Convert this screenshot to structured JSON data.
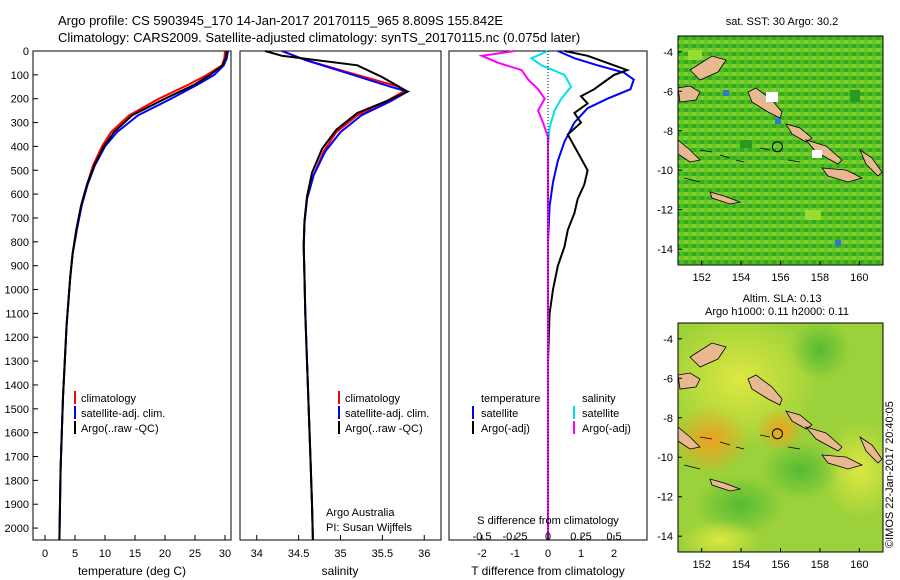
{
  "header": {
    "line1": "Argo profile: CS 5903945_170 14-Jan-2017 20170115_965 8.809S 155.842E",
    "line2": "Climatology: CARS2009. Satellite-adjusted climatology: synTS_20170115.nc (0.075d later)"
  },
  "colors": {
    "climatology": "#ff0000",
    "satellite": "#0000ff",
    "argo": "#000000",
    "sal_satellite": "#00e0ee",
    "sal_argo": "#ff00ff",
    "land": "#e8b890",
    "ocean": "#44bb22"
  },
  "chart_data": [
    {
      "id": "temperature",
      "type": "line",
      "xlabel": "temperature (deg C)",
      "ylabel": "",
      "xlim": [
        -2,
        31
      ],
      "ylim": [
        2050,
        0
      ],
      "xticks": [
        "0",
        "5",
        "10",
        "15",
        "20",
        "25",
        "30"
      ],
      "xtick_values": [
        0,
        5,
        10,
        15,
        20,
        25,
        30
      ],
      "yticks": [
        "0",
        "100",
        "200",
        "300",
        "400",
        "500",
        "600",
        "700",
        "800",
        "900",
        "1000",
        "1100",
        "1200",
        "1300",
        "1400",
        "1500",
        "1600",
        "1700",
        "1800",
        "1900",
        "2000"
      ],
      "ytick_values": [
        0,
        100,
        200,
        300,
        400,
        500,
        600,
        700,
        800,
        900,
        1000,
        1100,
        1200,
        1300,
        1400,
        1500,
        1600,
        1700,
        1800,
        1900,
        2000
      ],
      "legend": [
        "climatology",
        "satellite-adj. clim.",
        "Argo(..raw -QC)"
      ],
      "series": [
        {
          "name": "climatology",
          "color": "#ff0000",
          "points": [
            [
              30,
              0
            ],
            [
              29.9,
              30
            ],
            [
              29.5,
              60
            ],
            [
              27,
              100
            ],
            [
              24,
              140
            ],
            [
              19,
              200
            ],
            [
              14,
              270
            ],
            [
              11,
              340
            ],
            [
              9.5,
              400
            ],
            [
              8,
              480
            ],
            [
              7,
              560
            ],
            [
              6,
              650
            ],
            [
              5.3,
              750
            ],
            [
              4.6,
              850
            ],
            [
              4.2,
              950
            ],
            [
              3.9,
              1050
            ],
            [
              3.6,
              1150
            ],
            [
              3.4,
              1250
            ],
            [
              3.2,
              1350
            ],
            [
              3,
              1450
            ],
            [
              2.8,
              1600
            ],
            [
              2.6,
              1750
            ],
            [
              2.5,
              1900
            ],
            [
              2.4,
              2050
            ]
          ]
        },
        {
          "name": "satellite-adj. clim.",
          "color": "#0000ff",
          "points": [
            [
              30.5,
              0
            ],
            [
              30.3,
              30
            ],
            [
              29.8,
              60
            ],
            [
              28.2,
              100
            ],
            [
              25.5,
              140
            ],
            [
              21,
              200
            ],
            [
              15.5,
              270
            ],
            [
              12,
              340
            ],
            [
              10,
              400
            ],
            [
              8.3,
              480
            ],
            [
              7.1,
              560
            ],
            [
              6.1,
              650
            ],
            [
              5.3,
              750
            ],
            [
              4.6,
              850
            ],
            [
              4.2,
              950
            ],
            [
              3.9,
              1050
            ],
            [
              3.6,
              1150
            ],
            [
              3.4,
              1250
            ],
            [
              3.2,
              1350
            ],
            [
              3,
              1450
            ],
            [
              2.8,
              1600
            ],
            [
              2.6,
              1750
            ],
            [
              2.5,
              1900
            ],
            [
              2.4,
              2050
            ]
          ]
        },
        {
          "name": "Argo(..raw -QC)",
          "color": "#000000",
          "points": [
            [
              30.3,
              0
            ],
            [
              30.1,
              30
            ],
            [
              29.6,
              60
            ],
            [
              27.5,
              100
            ],
            [
              25,
              140
            ],
            [
              20,
              200
            ],
            [
              14.5,
              270
            ],
            [
              11.5,
              340
            ],
            [
              9.8,
              400
            ],
            [
              8.2,
              480
            ],
            [
              7,
              560
            ],
            [
              6,
              650
            ],
            [
              5.2,
              750
            ],
            [
              4.6,
              850
            ],
            [
              4.2,
              950
            ],
            [
              3.9,
              1050
            ],
            [
              3.6,
              1150
            ],
            [
              3.4,
              1250
            ],
            [
              3.2,
              1350
            ],
            [
              3,
              1450
            ],
            [
              2.8,
              1600
            ],
            [
              2.6,
              1750
            ],
            [
              2.5,
              1900
            ],
            [
              2.4,
              2050
            ]
          ]
        }
      ]
    },
    {
      "id": "salinity",
      "type": "line",
      "xlabel": "salinity",
      "xlim": [
        33.8,
        36.2
      ],
      "ylim": [
        2050,
        0
      ],
      "xticks": [
        "34",
        "34.5",
        "35",
        "35.5",
        "36"
      ],
      "xtick_values": [
        34,
        34.5,
        35,
        35.5,
        36
      ],
      "legend": [
        "climatology",
        "satellite-adj. clim.",
        "Argo(..raw -QC)"
      ],
      "credit": [
        "Argo Australia",
        "PI: Susan Wijffels"
      ],
      "series": [
        {
          "name": "climatology",
          "color": "#ff0000",
          "points": [
            [
              34.3,
              0
            ],
            [
              34.6,
              40
            ],
            [
              35.2,
              100
            ],
            [
              35.7,
              150
            ],
            [
              35.75,
              170
            ],
            [
              35.55,
              210
            ],
            [
              35.2,
              270
            ],
            [
              34.95,
              340
            ],
            [
              34.8,
              420
            ],
            [
              34.68,
              520
            ],
            [
              34.6,
              620
            ],
            [
              34.57,
              720
            ],
            [
              34.56,
              820
            ],
            [
              34.57,
              950
            ],
            [
              34.58,
              1100
            ],
            [
              34.6,
              1300
            ],
            [
              34.62,
              1500
            ],
            [
              34.64,
              1700
            ],
            [
              34.66,
              1900
            ],
            [
              34.67,
              2050
            ]
          ]
        },
        {
          "name": "satellite-adj. clim.",
          "color": "#0000ff",
          "points": [
            [
              34.3,
              0
            ],
            [
              34.6,
              40
            ],
            [
              35.15,
              100
            ],
            [
              35.6,
              150
            ],
            [
              35.8,
              170
            ],
            [
              35.6,
              210
            ],
            [
              35.25,
              270
            ],
            [
              35,
              340
            ],
            [
              34.82,
              420
            ],
            [
              34.68,
              520
            ],
            [
              34.6,
              620
            ],
            [
              34.57,
              720
            ],
            [
              34.56,
              820
            ],
            [
              34.57,
              950
            ],
            [
              34.58,
              1100
            ],
            [
              34.6,
              1300
            ],
            [
              34.62,
              1500
            ],
            [
              34.64,
              1700
            ],
            [
              34.66,
              1900
            ],
            [
              34.67,
              2050
            ]
          ]
        },
        {
          "name": "Argo(..raw -QC)",
          "color": "#000000",
          "points": [
            [
              34.1,
              0
            ],
            [
              34.3,
              20
            ],
            [
              35.2,
              60
            ],
            [
              35.5,
              110
            ],
            [
              35.7,
              150
            ],
            [
              35.8,
              170
            ],
            [
              35.55,
              210
            ],
            [
              35.2,
              260
            ],
            [
              34.95,
              330
            ],
            [
              34.78,
              410
            ],
            [
              34.66,
              510
            ],
            [
              34.6,
              610
            ],
            [
              34.57,
              710
            ],
            [
              34.56,
              810
            ],
            [
              34.57,
              950
            ],
            [
              34.58,
              1100
            ],
            [
              34.6,
              1300
            ],
            [
              34.62,
              1500
            ],
            [
              34.64,
              1700
            ],
            [
              34.66,
              1900
            ],
            [
              34.67,
              2050
            ]
          ]
        }
      ]
    },
    {
      "id": "difference",
      "type": "line",
      "xlabel": "T difference from climatology",
      "xlabel_top": "S difference from climatology",
      "xlim": [
        -3,
        3
      ],
      "ylim": [
        2050,
        0
      ],
      "xticks": [
        "-2",
        "-1",
        "0",
        "1",
        "2"
      ],
      "xtick_values": [
        -2,
        -1,
        0,
        1,
        2
      ],
      "sticks": [
        "-0.5",
        "-0.25",
        "0",
        "0.25",
        "0.5"
      ],
      "stick_positions_T": [
        -2,
        -1,
        0,
        1,
        2
      ],
      "legend_temperature": {
        "title": "temperature",
        "items": [
          "satellite",
          "Argo(-adj)"
        ]
      },
      "legend_salinity": {
        "title": "salinity",
        "items": [
          "satellite",
          "Argo(-adj)"
        ]
      },
      "series": [
        {
          "name": "temperature satellite",
          "color": "#0000ff",
          "points": [
            [
              0.3,
              0
            ],
            [
              0.8,
              30
            ],
            [
              1.5,
              60
            ],
            [
              2.3,
              90
            ],
            [
              2.6,
              120
            ],
            [
              2.5,
              160
            ],
            [
              1.8,
              200
            ],
            [
              1.2,
              240
            ],
            [
              0.8,
              300
            ],
            [
              0.5,
              380
            ],
            [
              0.3,
              460
            ],
            [
              0.15,
              550
            ],
            [
              0.05,
              650
            ],
            [
              0,
              800
            ],
            [
              0,
              1000
            ],
            [
              0,
              1300
            ],
            [
              0,
              1600
            ],
            [
              0,
              2050
            ]
          ]
        },
        {
          "name": "temperature Argo(-adj)",
          "color": "#000000",
          "points": [
            [
              0.5,
              0
            ],
            [
              1.2,
              20
            ],
            [
              1.8,
              50
            ],
            [
              2.4,
              80
            ],
            [
              2,
              100
            ],
            [
              1.7,
              130
            ],
            [
              1.4,
              160
            ],
            [
              1.0,
              190
            ],
            [
              1.2,
              220
            ],
            [
              0.8,
              260
            ],
            [
              1.0,
              300
            ],
            [
              0.6,
              350
            ],
            [
              0.8,
              400
            ],
            [
              1.0,
              450
            ],
            [
              1.2,
              500
            ],
            [
              1.1,
              560
            ],
            [
              0.9,
              620
            ],
            [
              0.8,
              680
            ],
            [
              0.6,
              750
            ],
            [
              0.5,
              820
            ],
            [
              0.3,
              900
            ],
            [
              0.15,
              1000
            ],
            [
              0.05,
              1100
            ],
            [
              0,
              1300
            ],
            [
              0,
              1600
            ],
            [
              0,
              2050
            ]
          ]
        },
        {
          "name": "salinity satellite",
          "color": "#00e0ee",
          "points": [
            [
              0,
              0
            ],
            [
              -0.5,
              30
            ],
            [
              -0.2,
              60
            ],
            [
              0.5,
              100
            ],
            [
              0.7,
              150
            ],
            [
              0.4,
              200
            ],
            [
              0.2,
              250
            ],
            [
              0.05,
              320
            ],
            [
              0,
              400
            ],
            [
              0,
              600
            ],
            [
              0,
              900
            ],
            [
              0,
              1200
            ],
            [
              0,
              1500
            ],
            [
              0,
              1800
            ],
            [
              0,
              2050
            ]
          ]
        },
        {
          "name": "salinity Argo(-adj)",
          "color": "#ff00ff",
          "points": [
            [
              -1.0,
              0
            ],
            [
              -2.0,
              20
            ],
            [
              -1.5,
              50
            ],
            [
              -0.8,
              80
            ],
            [
              -0.6,
              120
            ],
            [
              -0.3,
              160
            ],
            [
              -0.1,
              200
            ],
            [
              -0.3,
              250
            ],
            [
              -0.15,
              300
            ],
            [
              0,
              360
            ],
            [
              0,
              450
            ],
            [
              0,
              600
            ],
            [
              0,
              900
            ],
            [
              0,
              1200
            ],
            [
              0,
              1500
            ],
            [
              0,
              1800
            ],
            [
              0,
              2050
            ]
          ]
        }
      ]
    }
  ],
  "maps": [
    {
      "id": "sst",
      "title": "sat. SST: 30 Argo: 30.2",
      "xticks": [
        "152",
        "154",
        "156",
        "158",
        "160"
      ],
      "xtick_values": [
        152,
        154,
        156,
        158,
        160
      ],
      "yticks": [
        "-4",
        "-6",
        "-8",
        "-10",
        "-12",
        "-14"
      ],
      "ytick_values": [
        -4,
        -6,
        -8,
        -10,
        -12,
        -14
      ],
      "xlim": [
        150.8,
        161.2
      ],
      "ylim": [
        -3.2,
        -14.8
      ],
      "profile_lon": 155.842,
      "profile_lat": -8.809
    },
    {
      "id": "sla",
      "title1": "Altim. SLA: 0.13",
      "title2": "Argo h1000: 0.11 h2000: 0.11",
      "xticks": [
        "152",
        "154",
        "156",
        "158",
        "160"
      ],
      "xtick_values": [
        152,
        154,
        156,
        158,
        160
      ],
      "yticks": [
        "-4",
        "-6",
        "-8",
        "-10",
        "-12",
        "-14"
      ],
      "ytick_values": [
        -4,
        -6,
        -8,
        -10,
        -12,
        -14
      ],
      "xlim": [
        150.8,
        161.2
      ],
      "ylim": [
        -3.2,
        -14.8
      ],
      "profile_lon": 155.842,
      "profile_lat": -8.809
    }
  ],
  "footer_stamp": "©IMOS 22-Jan-2017 20:40:05"
}
